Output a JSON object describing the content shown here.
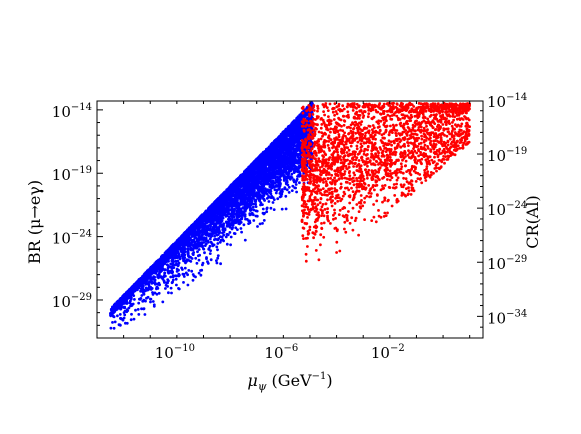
{
  "chart_data": {
    "type": "scatter",
    "title": "",
    "xlabel": "μ_ψ (GeV⁻¹)",
    "ylabel": "BR (μ→eγ)",
    "y2label": "CR(Al)",
    "xscale": "log",
    "yscale": "log",
    "xlim_log10": [
      -13,
      1.5
    ],
    "ylim_log10": [
      -32,
      -13.3
    ],
    "y2lim_log10": [
      -36,
      -14.1
    ],
    "xticks": [
      {
        "base": "10",
        "exp": "−10",
        "log10": -10
      },
      {
        "base": "10",
        "exp": "−6",
        "log10": -6
      },
      {
        "base": "10",
        "exp": "−2",
        "log10": -2
      }
    ],
    "yticks": [
      {
        "base": "10",
        "exp": "−14",
        "log10": -14
      },
      {
        "base": "10",
        "exp": "−19",
        "log10": -19
      },
      {
        "base": "10",
        "exp": "−24",
        "log10": -24
      },
      {
        "base": "10",
        "exp": "−29",
        "log10": -29
      }
    ],
    "y2ticks": [
      {
        "base": "10",
        "exp": "−14",
        "log10": -14
      },
      {
        "base": "10",
        "exp": "−19",
        "log10": -19
      },
      {
        "base": "10",
        "exp": "−24",
        "log10": -24
      },
      {
        "base": "10",
        "exp": "−29",
        "log10": -29
      },
      {
        "base": "10",
        "exp": "−34",
        "log10": -34
      }
    ],
    "grid": false,
    "series": [
      {
        "color": "#0000ff",
        "y_axis": "left",
        "region_description_log10": "x from -12.5 to -4.9; upper edge rising from y≈-29.7 at x=-12.5 to y≈-13.5 at x≈-5; lower edge rising from y≈-31.5 to y≈-24",
        "approx_count": 7000
      },
      {
        "color": "#ff0000",
        "y_axis": "right",
        "region_description_log10": "x from -5.3 to 1.0; upper bound y2≈-14.3; lower edge rising from y2≈-30 at x=-4.5 to y2≈-18 at x=1",
        "approx_count": 2500
      }
    ]
  }
}
